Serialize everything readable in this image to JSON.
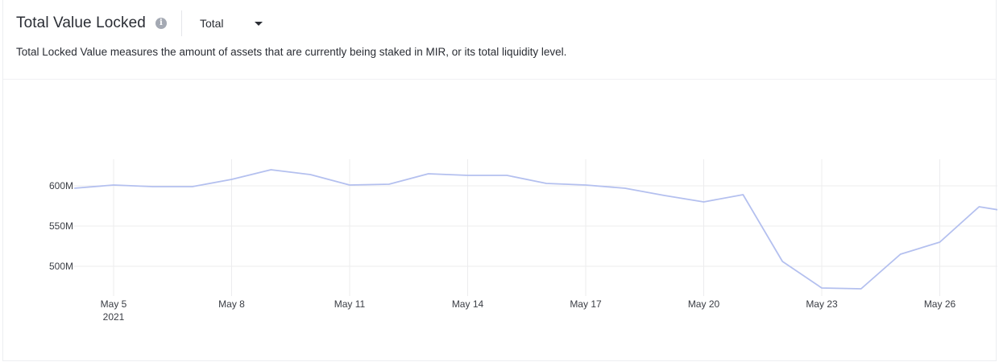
{
  "header": {
    "title": "Total Value Locked",
    "info_icon": "info-icon",
    "selector_value": "Total"
  },
  "description": "Total Locked Value measures the amount of assets that are currently being staked in MIR, or its total liquidity level.",
  "colors": {
    "line": "#b4c0ef",
    "grid": "#ececee",
    "text": "#2a2d34"
  },
  "chart_data": {
    "type": "line",
    "title": "",
    "xlabel": "",
    "ylabel": "",
    "x": [
      "2021-05-04",
      "2021-05-05",
      "2021-05-06",
      "2021-05-07",
      "2021-05-08",
      "2021-05-09",
      "2021-05-10",
      "2021-05-11",
      "2021-05-12",
      "2021-05-13",
      "2021-05-14",
      "2021-05-15",
      "2021-05-16",
      "2021-05-17",
      "2021-05-18",
      "2021-05-19",
      "2021-05-20",
      "2021-05-21",
      "2021-05-22",
      "2021-05-23",
      "2021-05-24",
      "2021-05-25",
      "2021-05-26",
      "2021-05-27",
      "2021-05-27T12:00"
    ],
    "series": [
      {
        "values": [
          597,
          601,
          599,
          599,
          608,
          620,
          614,
          601,
          602,
          615,
          613,
          613,
          603,
          601,
          597,
          588,
          580,
          589,
          506,
          473,
          472,
          515,
          530,
          574,
          570
        ]
      }
    ],
    "x_ticks": [
      {
        "date": "2021-05-05",
        "label": "May 5",
        "sublabel": "2021"
      },
      {
        "date": "2021-05-08",
        "label": "May 8",
        "sublabel": ""
      },
      {
        "date": "2021-05-11",
        "label": "May 11",
        "sublabel": ""
      },
      {
        "date": "2021-05-14",
        "label": "May 14",
        "sublabel": ""
      },
      {
        "date": "2021-05-17",
        "label": "May 17",
        "sublabel": ""
      },
      {
        "date": "2021-05-20",
        "label": "May 20",
        "sublabel": ""
      },
      {
        "date": "2021-05-23",
        "label": "May 23",
        "sublabel": ""
      },
      {
        "date": "2021-05-26",
        "label": "May 26",
        "sublabel": ""
      }
    ],
    "y_ticks": [
      {
        "value": 500,
        "label": "500M"
      },
      {
        "value": 550,
        "label": "550M"
      },
      {
        "value": 600,
        "label": "600M"
      }
    ],
    "ylim": [
      463,
      633
    ],
    "grid": true,
    "legend": "none"
  }
}
